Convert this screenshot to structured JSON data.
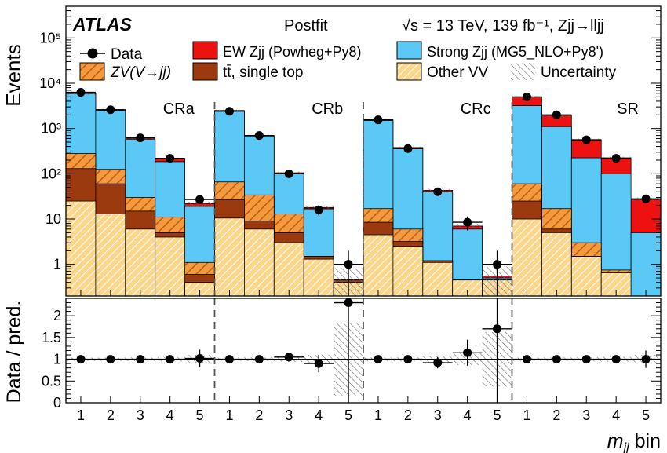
{
  "chart_data": {
    "type": "bar",
    "experiment": "ATLAS",
    "fit_state": "Postfit",
    "energy_label": "√s = 13 TeV, 139 fb⁻¹, Zjj→lljj",
    "ylabel": "Events",
    "ratio_ylabel": "Data / pred.",
    "xlabel": "m_jj bin",
    "xlabel_main": "m",
    "xlabel_sub": "jj",
    "xlabel_suffix": " bin",
    "regions": [
      "CRa",
      "CRb",
      "CRc",
      "SR"
    ],
    "bin_labels": [
      "1",
      "2",
      "3",
      "4",
      "5"
    ],
    "y_scale": "log",
    "ylim": [
      0.2,
      500000
    ],
    "y_tick_labels": [
      "1",
      "10",
      "10²",
      "10³",
      "10⁴",
      "10⁵"
    ],
    "ratio_ylim": [
      0,
      2.4
    ],
    "ratio_tick_labels": [
      "0",
      "0.5",
      "1",
      "1.5",
      "2"
    ],
    "colors": {
      "strong_zjj": "#5bc8f5",
      "ew_zjj": "#ee1111",
      "zv": "#f39a3e",
      "ttbar": "#9b3a0f",
      "other_vv": "#fcd68a",
      "data": "#000000"
    },
    "legend": [
      {
        "key": "data",
        "label": "Data"
      },
      {
        "key": "ew",
        "label": "EW Zjj (Powheg+Py8)"
      },
      {
        "key": "strong",
        "label": "Strong Zjj (MG5_NLO+Py8')"
      },
      {
        "key": "zv",
        "label": "ZV(V→jj)"
      },
      {
        "key": "ttbar",
        "label": "tt̄, single top"
      },
      {
        "key": "othervv",
        "label": "Other VV"
      },
      {
        "key": "unc",
        "label": "Uncertainty"
      }
    ],
    "series": [
      {
        "name": "Other VV",
        "values": [
          25,
          13,
          6,
          4,
          0.4,
          10.5,
          6,
          3,
          1.3,
          0.4,
          4.5,
          2.5,
          1.1,
          0.45,
          0.45,
          10,
          5,
          1.5,
          0.65,
          0.2
        ]
      },
      {
        "name": "tt̄, single top",
        "values": [
          130,
          60,
          15,
          5,
          0.6,
          27,
          9,
          5,
          1.5,
          0.45,
          8.5,
          3.2,
          1.2,
          0.45,
          0.45,
          25,
          6,
          1.5,
          0.65,
          0.2
        ]
      },
      {
        "name": "ZV(V→jj)",
        "values": [
          280,
          125,
          30,
          11,
          1.1,
          66,
          34,
          13,
          1.5,
          0.45,
          17,
          6,
          1.2,
          0.45,
          0.45,
          60,
          17,
          3,
          0.75,
          0.2
        ]
      },
      {
        "name": "Strong Zjj",
        "values": [
          5900,
          2500,
          580,
          185,
          19,
          2450,
          680,
          100,
          17,
          0.45,
          1500,
          360,
          40,
          6,
          0.5,
          3200,
          1100,
          225,
          100,
          5
        ]
      },
      {
        "name": "EW Zjj",
        "values": [
          6050,
          2600,
          620,
          215,
          22,
          2500,
          700,
          105,
          18,
          0.45,
          1580,
          380,
          43,
          7,
          0.55,
          5000,
          1950,
          570,
          225,
          27
        ]
      }
    ],
    "data_points": [
      6300,
      2600,
      620,
      220,
      27,
      2400,
      700,
      100,
      16,
      1,
      1550,
      360,
      40,
      8.5,
      1,
      5000,
      2000,
      560,
      220,
      28
    ],
    "ratio": [
      1.0,
      1.0,
      1.0,
      1.0,
      1.02,
      1.0,
      1.0,
      1.05,
      0.9,
      2.3,
      1.0,
      1.0,
      0.92,
      1.15,
      1.7,
      1.0,
      1.0,
      1.0,
      1.0,
      1.0
    ],
    "ratio_errors": [
      0.02,
      0.02,
      0.04,
      0.06,
      0.2,
      0.02,
      0.04,
      0.09,
      0.2,
      2.3,
      0.03,
      0.05,
      0.13,
      0.3,
      1.7,
      0.02,
      0.03,
      0.05,
      0.08,
      0.2
    ]
  }
}
